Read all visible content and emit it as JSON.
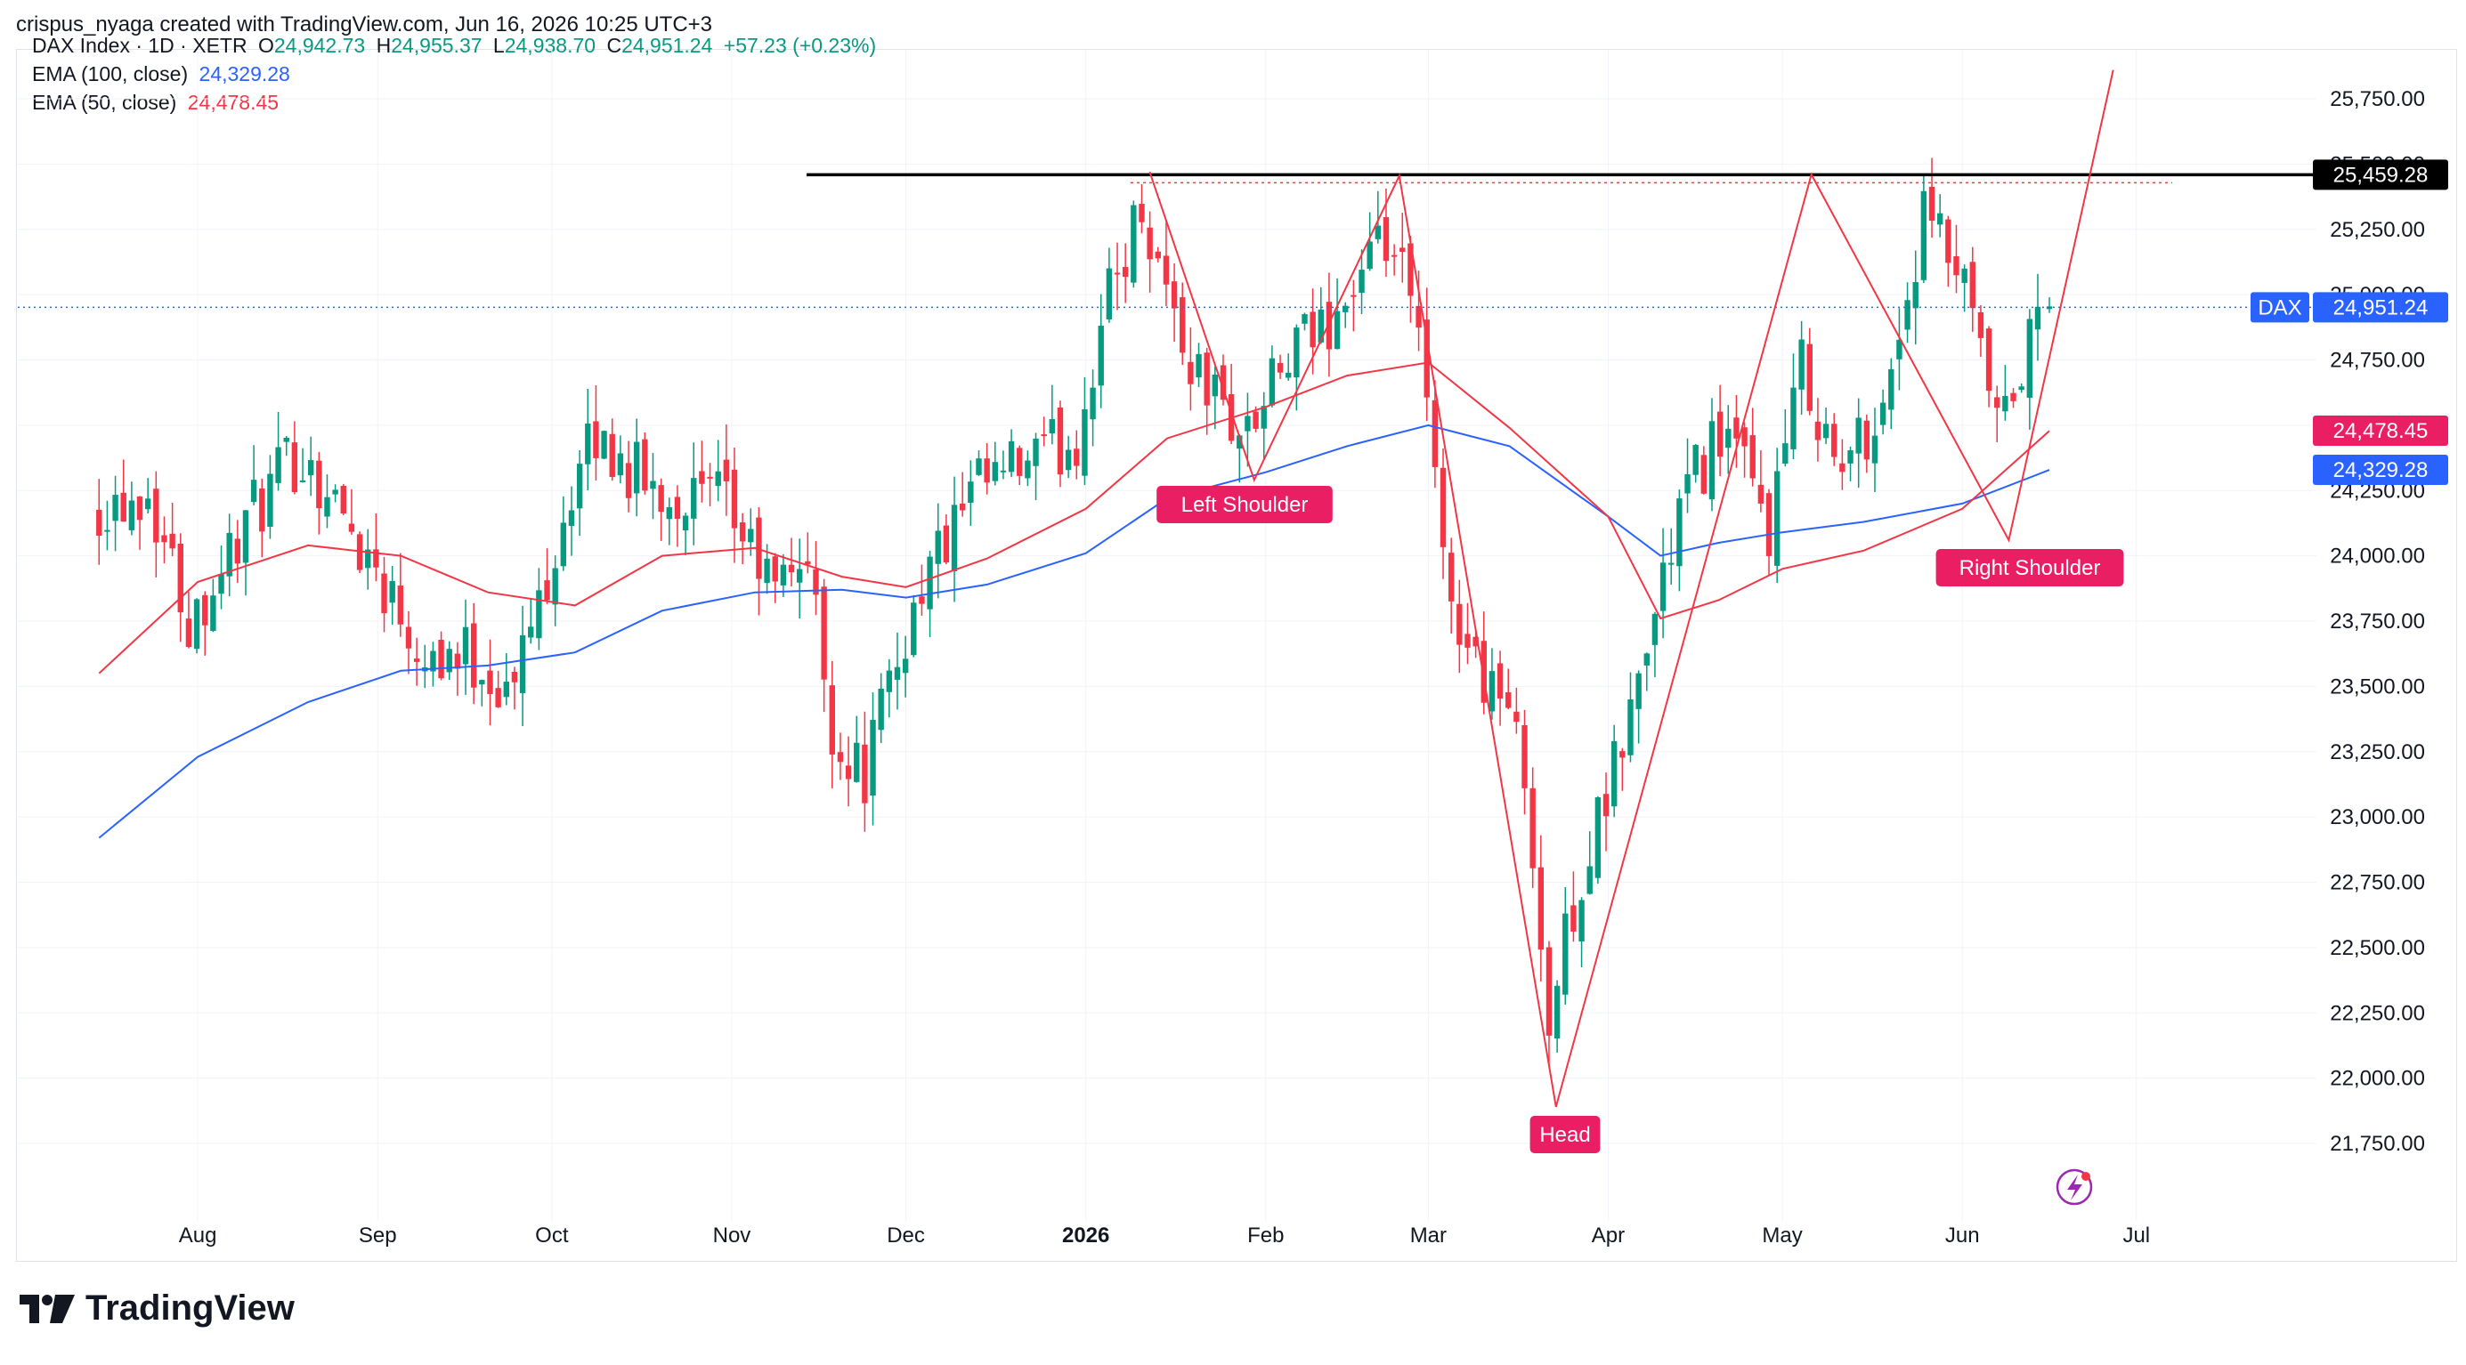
{
  "header": {
    "attribution": "crispus_nyaga created with TradingView.com, Jun 16, 2026 10:25 UTC+3"
  },
  "legend": {
    "symbol": "DAX Index · 1D · XETR",
    "o_label": "O",
    "o_value": "24,942.73",
    "h_label": "H",
    "h_value": "24,955.37",
    "l_label": "L",
    "l_value": "24,938.70",
    "c_label": "C",
    "c_value": "24,951.24",
    "change": "+57.23 (+0.23%)",
    "ema100_label": "EMA (100, close)",
    "ema100_value": "24,329.28",
    "ema50_label": "EMA (50, close)",
    "ema50_value": "24,478.45"
  },
  "brand": {
    "name": "TradingView",
    "logo_icon": "tradingview-logo-icon"
  },
  "colors": {
    "up": "#089981",
    "down": "#f23645",
    "ema100": "#2962ff",
    "ema50": "#f23645",
    "pattern": "#f23645",
    "resistance": "#000000",
    "tag_bg": "#e91e63",
    "dax_tag": "#2962ff"
  },
  "chart_data": {
    "type": "candlestick",
    "title": "DAX Index · 1D · XETR",
    "ylim": [
      21500,
      25950
    ],
    "y_ticks": [
      "21,750.00",
      "22,000.00",
      "22,250.00",
      "22,500.00",
      "22,750.00",
      "23,000.00",
      "23,250.00",
      "23,500.00",
      "23,750.00",
      "24,000.00",
      "24,250.00",
      "24,500.00",
      "24,750.00",
      "25,000.00",
      "25,250.00",
      "25,500.00",
      "25,750.00"
    ],
    "x_ticks": [
      "Aug",
      "Sep",
      "Oct",
      "Nov",
      "Dec",
      "2026",
      "Feb",
      "Mar",
      "Apr",
      "May",
      "Jun",
      "Jul"
    ],
    "bold_x_tick": "2026",
    "price_tags": [
      {
        "label": "",
        "value": "25,459.28",
        "style": "black"
      },
      {
        "label": "DAX",
        "value": "24,951.24",
        "style": "blue"
      },
      {
        "label": "",
        "value": "24,478.45",
        "style": "pink"
      },
      {
        "label": "",
        "value": "24,329.28",
        "style": "blue"
      }
    ],
    "resistance_level": 25459.28,
    "last_price": 24951.24,
    "annotations": [
      "Left Shoulder",
      "Head",
      "Right Shoulder"
    ],
    "pattern_points": [
      {
        "date": "2026-01-12",
        "value": 25470
      },
      {
        "date": "2026-01-30",
        "value": 24290
      },
      {
        "date": "2026-02-24",
        "value": 25455
      },
      {
        "date": "2026-03-23",
        "value": 21890
      },
      {
        "date": "2026-05-06",
        "value": 25460
      },
      {
        "date": "2026-06-09",
        "value": 24060
      },
      {
        "date": "2026-06-27",
        "value": 25860
      }
    ],
    "ema50": [
      {
        "date": "2025-07-15",
        "value": 23550
      },
      {
        "date": "2025-08-01",
        "value": 23900
      },
      {
        "date": "2025-08-20",
        "value": 24040
      },
      {
        "date": "2025-09-05",
        "value": 24000
      },
      {
        "date": "2025-09-20",
        "value": 23860
      },
      {
        "date": "2025-10-05",
        "value": 23810
      },
      {
        "date": "2025-10-20",
        "value": 24000
      },
      {
        "date": "2025-11-05",
        "value": 24030
      },
      {
        "date": "2025-11-20",
        "value": 23920
      },
      {
        "date": "2025-12-01",
        "value": 23880
      },
      {
        "date": "2025-12-15",
        "value": 23990
      },
      {
        "date": "2026-01-01",
        "value": 24180
      },
      {
        "date": "2026-01-15",
        "value": 24450
      },
      {
        "date": "2026-02-01",
        "value": 24570
      },
      {
        "date": "2026-02-15",
        "value": 24690
      },
      {
        "date": "2026-03-01",
        "value": 24740
      },
      {
        "date": "2026-03-15",
        "value": 24490
      },
      {
        "date": "2026-04-01",
        "value": 24150
      },
      {
        "date": "2026-04-10",
        "value": 23760
      },
      {
        "date": "2026-04-20",
        "value": 23830
      },
      {
        "date": "2026-05-01",
        "value": 23950
      },
      {
        "date": "2026-05-15",
        "value": 24020
      },
      {
        "date": "2026-06-01",
        "value": 24180
      },
      {
        "date": "2026-06-16",
        "value": 24478
      }
    ],
    "ema100": [
      {
        "date": "2025-07-15",
        "value": 22920
      },
      {
        "date": "2025-08-01",
        "value": 23230
      },
      {
        "date": "2025-08-20",
        "value": 23440
      },
      {
        "date": "2025-09-05",
        "value": 23560
      },
      {
        "date": "2025-09-20",
        "value": 23580
      },
      {
        "date": "2025-10-05",
        "value": 23630
      },
      {
        "date": "2025-10-20",
        "value": 23790
      },
      {
        "date": "2025-11-05",
        "value": 23860
      },
      {
        "date": "2025-11-20",
        "value": 23870
      },
      {
        "date": "2025-12-01",
        "value": 23840
      },
      {
        "date": "2025-12-15",
        "value": 23890
      },
      {
        "date": "2026-01-01",
        "value": 24010
      },
      {
        "date": "2026-01-15",
        "value": 24220
      },
      {
        "date": "2026-02-01",
        "value": 24320
      },
      {
        "date": "2026-02-15",
        "value": 24420
      },
      {
        "date": "2026-03-01",
        "value": 24500
      },
      {
        "date": "2026-03-15",
        "value": 24420
      },
      {
        "date": "2026-04-01",
        "value": 24150
      },
      {
        "date": "2026-04-10",
        "value": 24000
      },
      {
        "date": "2026-04-20",
        "value": 24050
      },
      {
        "date": "2026-05-01",
        "value": 24090
      },
      {
        "date": "2026-05-15",
        "value": 24130
      },
      {
        "date": "2026-06-01",
        "value": 24200
      },
      {
        "date": "2026-06-16",
        "value": 24329
      }
    ],
    "price_path": [
      {
        "date": "2025-07-15",
        "value": 24200
      },
      {
        "date": "2025-07-25",
        "value": 24250
      },
      {
        "date": "2025-08-01",
        "value": 23750
      },
      {
        "date": "2025-08-10",
        "value": 24100
      },
      {
        "date": "2025-08-20",
        "value": 24400
      },
      {
        "date": "2025-09-01",
        "value": 24000
      },
      {
        "date": "2025-09-10",
        "value": 23650
      },
      {
        "date": "2025-09-20",
        "value": 23600
      },
      {
        "date": "2025-09-25",
        "value": 23450
      },
      {
        "date": "2025-10-05",
        "value": 24200
      },
      {
        "date": "2025-10-10",
        "value": 24450
      },
      {
        "date": "2025-10-20",
        "value": 24250
      },
      {
        "date": "2025-11-01",
        "value": 24200
      },
      {
        "date": "2025-11-10",
        "value": 23850
      },
      {
        "date": "2025-11-15",
        "value": 24050
      },
      {
        "date": "2025-11-20",
        "value": 23300
      },
      {
        "date": "2025-11-25",
        "value": 23150
      },
      {
        "date": "2025-12-05",
        "value": 23900
      },
      {
        "date": "2025-12-15",
        "value": 24250
      },
      {
        "date": "2026-01-01",
        "value": 24450
      },
      {
        "date": "2026-01-05",
        "value": 24900
      },
      {
        "date": "2026-01-12",
        "value": 25350
      },
      {
        "date": "2026-01-20",
        "value": 24750
      },
      {
        "date": "2026-01-30",
        "value": 24450
      },
      {
        "date": "2026-02-05",
        "value": 24700
      },
      {
        "date": "2026-02-15",
        "value": 24950
      },
      {
        "date": "2026-02-24",
        "value": 25200
      },
      {
        "date": "2026-03-01",
        "value": 24800
      },
      {
        "date": "2026-03-05",
        "value": 23950
      },
      {
        "date": "2026-03-10",
        "value": 23600
      },
      {
        "date": "2026-03-15",
        "value": 23500
      },
      {
        "date": "2026-03-20",
        "value": 23050
      },
      {
        "date": "2026-03-23",
        "value": 22150
      },
      {
        "date": "2026-03-27",
        "value": 22650
      },
      {
        "date": "2026-04-02",
        "value": 23050
      },
      {
        "date": "2026-04-08",
        "value": 23550
      },
      {
        "date": "2026-04-15",
        "value": 24200
      },
      {
        "date": "2026-04-22",
        "value": 24500
      },
      {
        "date": "2026-04-30",
        "value": 24100
      },
      {
        "date": "2026-05-06",
        "value": 24750
      },
      {
        "date": "2026-05-12",
        "value": 24300
      },
      {
        "date": "2026-05-20",
        "value": 24600
      },
      {
        "date": "2026-05-27",
        "value": 25300
      },
      {
        "date": "2026-06-02",
        "value": 25050
      },
      {
        "date": "2026-06-09",
        "value": 24450
      },
      {
        "date": "2026-06-16",
        "value": 24951
      }
    ]
  }
}
